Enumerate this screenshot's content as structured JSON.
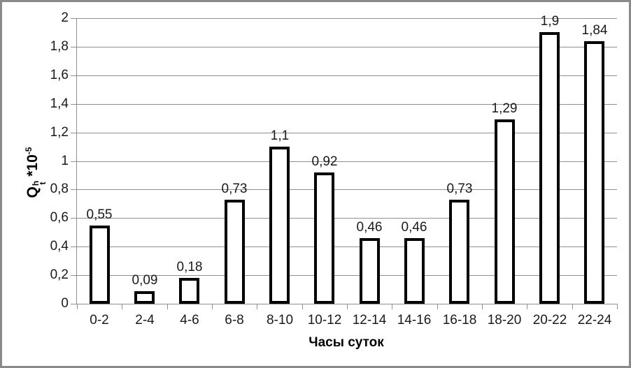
{
  "frame": {
    "background": "#ffffff",
    "border_color": "#8a8a8a"
  },
  "chart_data": {
    "type": "bar",
    "title": "",
    "xlabel": "Часы суток",
    "ylabel": {
      "plain": "Qht *10-5",
      "base": "Q",
      "sup": "h",
      "sub": "t",
      "mult": "*10",
      "exp": "-5"
    },
    "categories": [
      "0-2",
      "2-4",
      "4-6",
      "6-8",
      "8-10",
      "10-12",
      "12-14",
      "14-16",
      "16-18",
      "18-20",
      "20-22",
      "22-24"
    ],
    "values": [
      0.55,
      0.09,
      0.18,
      0.73,
      1.1,
      0.92,
      0.46,
      0.46,
      0.73,
      1.29,
      1.9,
      1.84
    ],
    "value_labels": [
      "0,55",
      "0,09",
      "0,18",
      "0,73",
      "1,1",
      "0,92",
      "0,46",
      "0,46",
      "0,73",
      "1,29",
      "1,9",
      "1,84"
    ],
    "ylim": [
      0,
      2
    ],
    "ytick_step": 0.2,
    "ytick_labels": [
      "0",
      "0,2",
      "0,4",
      "0,6",
      "0,8",
      "1",
      "1,2",
      "1,4",
      "1,6",
      "1,8",
      "2"
    ],
    "grid": true,
    "legend": "none",
    "styles": {
      "bar_fill": "#ffffff",
      "bar_border": "#000000",
      "gridline_color": "#909090",
      "axis_color": "#909090",
      "text_color": "#1a1a1a"
    }
  }
}
